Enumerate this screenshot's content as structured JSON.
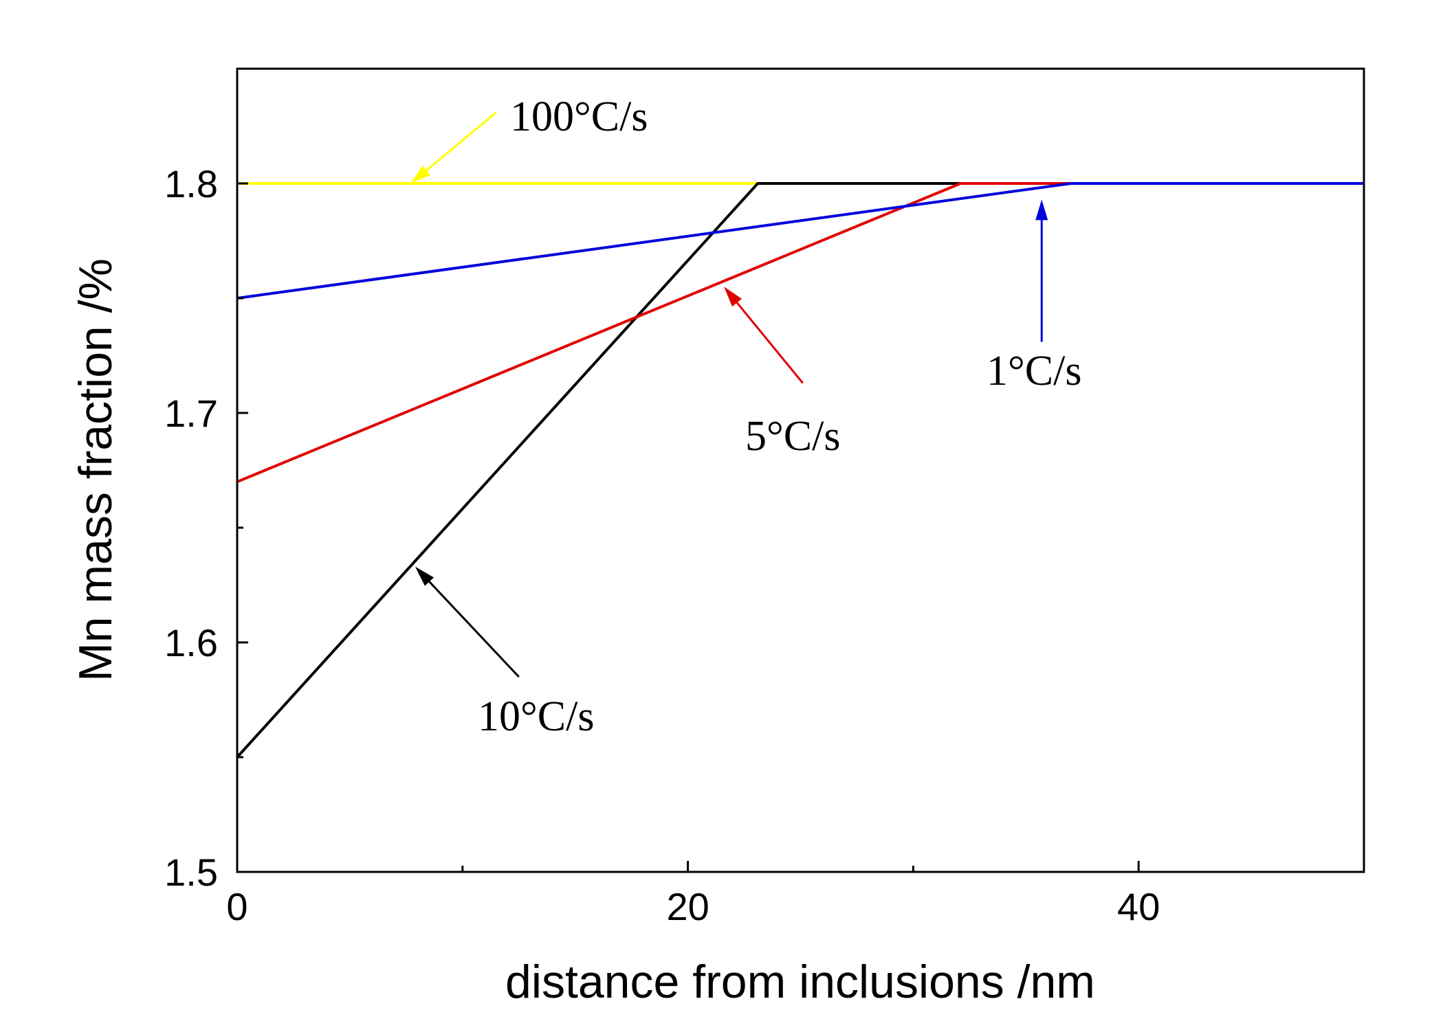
{
  "chart_data": {
    "type": "line",
    "title": "",
    "xlabel": "distance from inclusions /nm",
    "ylabel": "Mn mass fraction /%",
    "xlim": [
      0,
      50
    ],
    "ylim": [
      1.5,
      1.85
    ],
    "xticks": [
      0,
      20,
      40
    ],
    "xticks_minor": [
      10,
      30
    ],
    "yticks": [
      1.5,
      1.6,
      1.7,
      1.8
    ],
    "yticks_minor": [
      1.55,
      1.65,
      1.75
    ],
    "ytick_labels": [
      "1.5",
      "1.6",
      "1.7",
      "1.8"
    ],
    "grid": false,
    "series": [
      {
        "name": "100°C/s",
        "color": "#ffff00",
        "x": [
          0,
          50
        ],
        "y": [
          1.8,
          1.8
        ]
      },
      {
        "name": "10°C/s",
        "color": "#000000",
        "x": [
          0,
          23.1,
          50
        ],
        "y": [
          1.55,
          1.8,
          1.8
        ]
      },
      {
        "name": "5°C/s",
        "color": "#e00000",
        "x": [
          0,
          32.1,
          50
        ],
        "y": [
          1.67,
          1.8,
          1.8
        ]
      },
      {
        "name": "1°C/s",
        "color": "#0000dd",
        "x": [
          0,
          37,
          50
        ],
        "y": [
          1.75,
          1.8,
          1.8
        ]
      }
    ],
    "annotations": [
      {
        "text": "100°C/s",
        "color": "#ffff00",
        "arrow_to": [
          7.7,
          1.8
        ],
        "arrow_from": [
          11.5,
          1.831
        ]
      },
      {
        "text": "10°C/s",
        "color": "#000000",
        "arrow_to": [
          7.9,
          1.633
        ],
        "arrow_from": [
          12.5,
          1.585
        ]
      },
      {
        "text": "5°C/s",
        "color": "#e00000",
        "arrow_to": [
          21.6,
          1.755
        ],
        "arrow_from": [
          25.1,
          1.713
        ]
      },
      {
        "text": "1°C/s",
        "color": "#0000dd",
        "arrow_to": [
          35.7,
          1.793
        ],
        "arrow_from": [
          35.7,
          1.731
        ]
      }
    ]
  }
}
